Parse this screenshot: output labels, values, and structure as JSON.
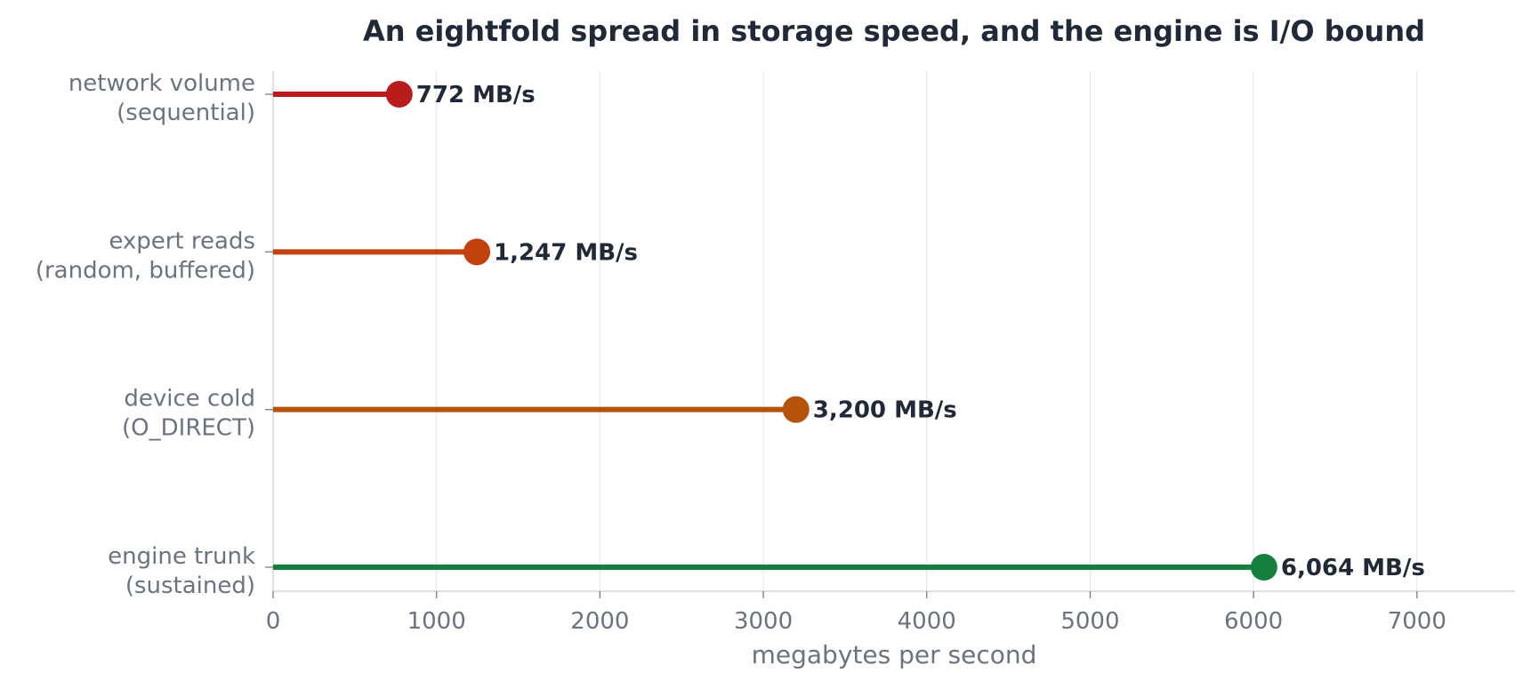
{
  "chart_data": {
    "type": "lollipop",
    "title": "An eightfold spread in storage speed, and the engine is I/O bound",
    "xlabel": "megabytes per second",
    "ylabel": "",
    "xlim": [
      0,
      7600
    ],
    "xticks": [
      0,
      1000,
      2000,
      3000,
      4000,
      5000,
      6000,
      7000
    ],
    "grid": "vertical",
    "legend": "none",
    "categories": [
      {
        "lines": [
          "network volume",
          "(sequential)"
        ],
        "value": 772,
        "value_label": "772 MB/s",
        "color": "#b91c1c"
      },
      {
        "lines": [
          "expert reads",
          "(random, buffered)"
        ],
        "value": 1247,
        "value_label": "1,247 MB/s",
        "color": "#c2410c"
      },
      {
        "lines": [
          "device cold",
          "(O_DIRECT)"
        ],
        "value": 3200,
        "value_label": "3,200 MB/s",
        "color": "#b45309"
      },
      {
        "lines": [
          "engine trunk",
          "(sustained)"
        ],
        "value": 6064,
        "value_label": "6,064 MB/s",
        "color": "#15803d"
      }
    ],
    "colors": {
      "grid": "#e5e7eb",
      "axis": "#d1d5db",
      "text": "#1f2937",
      "muted": "#6b7280"
    }
  }
}
